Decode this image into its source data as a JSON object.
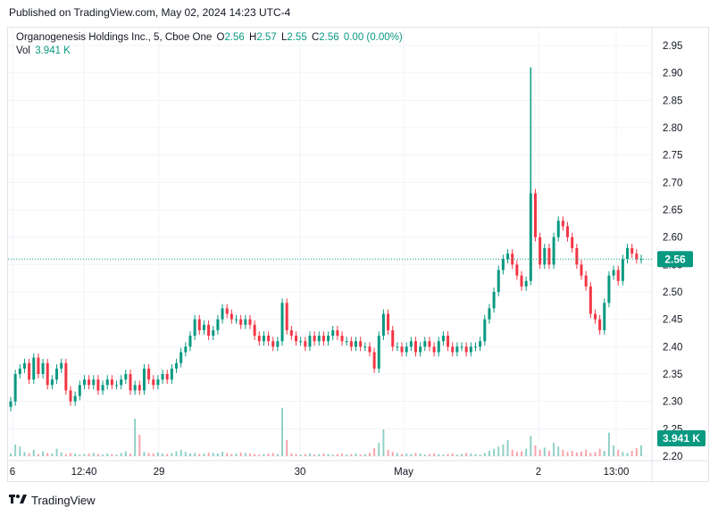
{
  "header": {
    "published": "Published on TradingView.com, May 02, 2024 14:23 UTC-4"
  },
  "legend": {
    "symbol": "Organogenesis Holdings Inc., 5, Cboe One",
    "o_label": "O",
    "o_value": "2.56",
    "h_label": "H",
    "h_value": "2.57",
    "l_label": "L",
    "l_value": "2.55",
    "c_label": "C",
    "c_value": "2.56",
    "change": "0.00 (0.00%)",
    "vol_label": "Vol",
    "vol_value": "3.941 K"
  },
  "footer": {
    "brand": "TradingView"
  },
  "colors": {
    "up": "#089981",
    "down": "#f23645",
    "grid": "#f0f3fa",
    "axis_text": "#131722",
    "price_line": "#089981"
  },
  "chart_data": {
    "type": "candlestick",
    "y_ticks": [
      "2.95",
      "2.90",
      "2.85",
      "2.80",
      "2.75",
      "2.70",
      "2.65",
      "2.60",
      "2.55",
      "2.50",
      "2.45",
      "2.40",
      "2.35",
      "2.30",
      "2.25",
      "2.20"
    ],
    "ylim": [
      2.2,
      2.95
    ],
    "x_labels": [
      "6",
      "12:40",
      "29",
      "30",
      "May",
      "2",
      "13:00"
    ],
    "last_price": "2.56",
    "last_volume": "3.941 K",
    "series": [
      {
        "name": "price",
        "closes": [
          2.3,
          2.35,
          2.36,
          2.37,
          2.34,
          2.38,
          2.35,
          2.37,
          2.33,
          2.34,
          2.36,
          2.37,
          2.32,
          2.3,
          2.31,
          2.33,
          2.34,
          2.33,
          2.34,
          2.32,
          2.33,
          2.34,
          2.33,
          2.33,
          2.34,
          2.35,
          2.32,
          2.33,
          2.32,
          2.36,
          2.34,
          2.33,
          2.34,
          2.35,
          2.34,
          2.36,
          2.37,
          2.39,
          2.4,
          2.42,
          2.45,
          2.43,
          2.44,
          2.42,
          2.43,
          2.45,
          2.47,
          2.46,
          2.45,
          2.45,
          2.44,
          2.45,
          2.44,
          2.42,
          2.41,
          2.42,
          2.41,
          2.4,
          2.41,
          2.48,
          2.43,
          2.42,
          2.41,
          2.41,
          2.4,
          2.42,
          2.41,
          2.42,
          2.41,
          2.42,
          2.43,
          2.42,
          2.41,
          2.41,
          2.4,
          2.41,
          2.4,
          2.4,
          2.39,
          2.36,
          2.42,
          2.46,
          2.43,
          2.4,
          2.4,
          2.39,
          2.4,
          2.41,
          2.39,
          2.4,
          2.41,
          2.4,
          2.39,
          2.41,
          2.42,
          2.4,
          2.39,
          2.4,
          2.4,
          2.39,
          2.4,
          2.4,
          2.41,
          2.45,
          2.47,
          2.5,
          2.54,
          2.56,
          2.57,
          2.55,
          2.53,
          2.51,
          2.52,
          2.68,
          2.6,
          2.55,
          2.58,
          2.55,
          2.6,
          2.63,
          2.62,
          2.6,
          2.58,
          2.55,
          2.53,
          2.51,
          2.46,
          2.45,
          2.43,
          2.48,
          2.53,
          2.54,
          2.52,
          2.56,
          2.58,
          2.57,
          2.56,
          2.56
        ]
      },
      {
        "name": "volume",
        "values": [
          5,
          22,
          18,
          8,
          6,
          12,
          4,
          9,
          6,
          5,
          14,
          7,
          4,
          6,
          5,
          3,
          4,
          5,
          6,
          4,
          3,
          5,
          4,
          3,
          6,
          9,
          5,
          70,
          40,
          8,
          6,
          5,
          7,
          5,
          4,
          6,
          9,
          12,
          8,
          5,
          6,
          4,
          5,
          7,
          6,
          5,
          8,
          6,
          4,
          5,
          7,
          6,
          5,
          4,
          3,
          4,
          5,
          6,
          4,
          90,
          30,
          5,
          4,
          3,
          4,
          5,
          3,
          4,
          5,
          4,
          3,
          4,
          5,
          3,
          4,
          5,
          3,
          4,
          6,
          15,
          25,
          50,
          12,
          8,
          6,
          4,
          5,
          4,
          6,
          5,
          3,
          4,
          5,
          4,
          3,
          4,
          5,
          3,
          4,
          6,
          5,
          4,
          3,
          6,
          10,
          14,
          18,
          22,
          30,
          12,
          8,
          9,
          14,
          38,
          20,
          12,
          16,
          10,
          25,
          18,
          12,
          8,
          10,
          7,
          9,
          12,
          6,
          8,
          14,
          10,
          44,
          20,
          12,
          8,
          6,
          10,
          15,
          20
        ]
      }
    ]
  }
}
